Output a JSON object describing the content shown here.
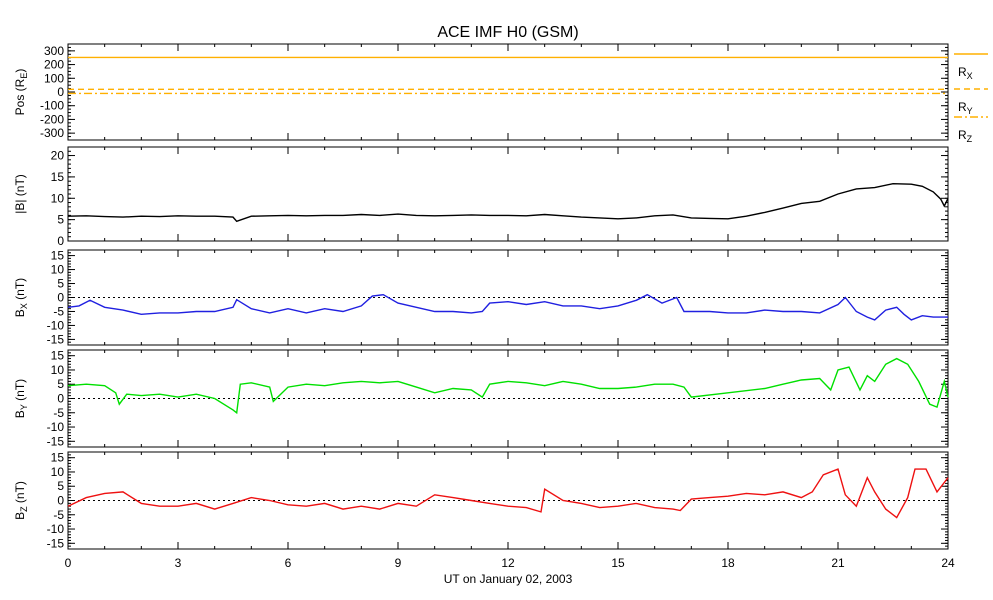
{
  "chart_data": {
    "title": "ACE IMF H0 (GSM)",
    "xlabel": "UT on January 02, 2003",
    "x_ticks": [
      "0",
      "3",
      "6",
      "9",
      "12",
      "15",
      "18",
      "21",
      "24"
    ],
    "xlim": [
      0,
      24
    ],
    "panels": [
      {
        "id": "pos",
        "type": "line",
        "ylabel_main": "Pos (R",
        "ylabel_sub": "E",
        "ylabel_end": ")",
        "ylim": [
          -350,
          350
        ],
        "y_ticks": [
          "300",
          "200",
          "100",
          "0",
          "-100",
          "-200",
          "-300"
        ],
        "zero_line": false,
        "legend": [
          {
            "main": "R",
            "sub": "X",
            "color": "#ffb000",
            "dash": "solid"
          },
          {
            "main": "R",
            "sub": "Y",
            "color": "#ffb000",
            "dash": "dashed"
          },
          {
            "main": "R",
            "sub": "Z",
            "color": "#ffb000",
            "dash": "dashdot"
          }
        ],
        "series": [
          {
            "name": "R_X",
            "color": "#ffb000",
            "dash": "solid",
            "x": [
              0,
              24
            ],
            "y": [
              252,
              252
            ]
          },
          {
            "name": "R_Y",
            "color": "#ffb000",
            "dash": "dashed",
            "x": [
              0,
              24
            ],
            "y": [
              20,
              20
            ]
          },
          {
            "name": "R_Z",
            "color": "#ffb000",
            "dash": "dashdot",
            "x": [
              0,
              24
            ],
            "y": [
              -10,
              -10
            ]
          }
        ]
      },
      {
        "id": "btot",
        "type": "line",
        "ylabel_main": "|B| (nT)",
        "ylabel_sub": "",
        "ylabel_end": "",
        "ylim": [
          0,
          22
        ],
        "y_ticks": [
          "20",
          "15",
          "10",
          "5",
          "0"
        ],
        "zero_line": false,
        "series": [
          {
            "name": "|B|",
            "color": "#000000",
            "x": [
              0,
              0.5,
              1,
              1.5,
              2,
              2.5,
              3,
              3.5,
              4,
              4.5,
              4.6,
              5,
              5.5,
              6,
              6.5,
              7,
              7.5,
              8,
              8.5,
              9,
              9.5,
              10,
              10.5,
              11,
              11.5,
              12,
              12.5,
              13,
              13.5,
              14,
              14.5,
              15,
              15.5,
              16,
              16.5,
              17,
              17.5,
              18,
              18.5,
              19,
              19.5,
              20,
              20.5,
              21,
              21.5,
              22,
              22.5,
              23,
              23.3,
              23.6,
              23.8,
              23.9,
              24
            ],
            "y": [
              5.8,
              5.9,
              5.7,
              5.6,
              5.8,
              5.7,
              5.9,
              5.8,
              5.8,
              5.6,
              4.6,
              5.8,
              5.9,
              6.0,
              5.9,
              6.0,
              6.0,
              6.2,
              6.0,
              6.3,
              6.0,
              5.9,
              6.0,
              6.1,
              6.0,
              6.0,
              5.9,
              6.2,
              5.9,
              5.6,
              5.4,
              5.2,
              5.4,
              5.9,
              6.1,
              5.4,
              5.3,
              5.2,
              5.8,
              6.7,
              7.7,
              8.8,
              9.3,
              11.0,
              12.2,
              12.5,
              13.4,
              13.3,
              12.8,
              11.5,
              9.8,
              8.2,
              10.0
            ]
          }
        ]
      },
      {
        "id": "bx",
        "type": "line",
        "ylabel_main": "B",
        "ylabel_sub": "X",
        "ylabel_end": " (nT)",
        "ylim": [
          -17,
          17
        ],
        "y_ticks": [
          "15",
          "10",
          "5",
          "0",
          "-5",
          "-10",
          "-15"
        ],
        "zero_line": true,
        "series": [
          {
            "name": "B_X",
            "color": "#2020e0",
            "x": [
              0,
              0.3,
              0.6,
              1,
              1.5,
              2,
              2.5,
              3,
              3.5,
              4,
              4.5,
              4.6,
              5,
              5.5,
              6,
              6.5,
              7,
              7.5,
              8,
              8.3,
              8.6,
              9,
              9.5,
              10,
              10.5,
              11,
              11.3,
              11.5,
              12,
              12.5,
              13,
              13.5,
              14,
              14.5,
              15,
              15.5,
              15.8,
              16.2,
              16.6,
              16.8,
              17.5,
              18,
              18.5,
              19,
              19.5,
              20,
              20.5,
              21,
              21.2,
              21.5,
              21.8,
              22,
              22.3,
              22.6,
              22.8,
              23,
              23.3,
              23.6,
              24
            ],
            "y": [
              -3.5,
              -3.0,
              -1.0,
              -3.5,
              -4.5,
              -6.0,
              -5.5,
              -5.5,
              -5.0,
              -5.0,
              -3.5,
              -0.8,
              -4.0,
              -5.5,
              -4.0,
              -5.5,
              -4.0,
              -5.0,
              -3.0,
              0.5,
              1.0,
              -2.0,
              -3.5,
              -5.0,
              -5.0,
              -5.5,
              -5.0,
              -2.0,
              -1.5,
              -2.5,
              -1.5,
              -3.0,
              -3.0,
              -4.0,
              -3.0,
              -1.0,
              1.0,
              -2.0,
              0.0,
              -5.0,
              -5.0,
              -5.5,
              -5.5,
              -4.5,
              -5.0,
              -5.0,
              -5.5,
              -2.5,
              0.0,
              -5.0,
              -7.0,
              -8.0,
              -4.5,
              -3.5,
              -6.0,
              -8.0,
              -6.5,
              -7.0,
              -7.0
            ]
          }
        ]
      },
      {
        "id": "by",
        "type": "line",
        "ylabel_main": "B",
        "ylabel_sub": "Y",
        "ylabel_end": " (nT)",
        "ylim": [
          -17,
          17
        ],
        "y_ticks": [
          "15",
          "10",
          "5",
          "0",
          "-5",
          "-10",
          "-15"
        ],
        "zero_line": true,
        "series": [
          {
            "name": "B_Y",
            "color": "#00e000",
            "x": [
              0,
              0.5,
              1,
              1.3,
              1.4,
              1.6,
              2,
              2.5,
              3,
              3.5,
              4,
              4.5,
              4.6,
              4.7,
              5,
              5.5,
              5.6,
              6,
              6.5,
              7,
              7.5,
              8,
              8.5,
              9,
              9.5,
              10,
              10.5,
              11,
              11.3,
              11.5,
              12,
              12.5,
              13,
              13.5,
              14,
              14.5,
              15,
              15.5,
              16,
              16.5,
              16.8,
              17,
              18,
              19,
              19.5,
              20,
              20.5,
              20.8,
              21,
              21.3,
              21.6,
              21.8,
              22,
              22.3,
              22.6,
              22.9,
              23.2,
              23.5,
              23.7,
              23.9,
              24
            ],
            "y": [
              4.5,
              5.0,
              4.5,
              2.0,
              -2.0,
              1.5,
              1.0,
              1.5,
              0.5,
              1.5,
              0.0,
              -4.0,
              -5.0,
              5.0,
              5.5,
              4.0,
              -1.0,
              4.0,
              5.0,
              4.5,
              5.5,
              6.0,
              5.5,
              6.0,
              4.0,
              2.0,
              3.5,
              3.0,
              0.5,
              5.0,
              6.0,
              5.5,
              4.5,
              6.0,
              5.0,
              3.5,
              3.5,
              4.0,
              5.0,
              5.0,
              4.0,
              0.5,
              2.0,
              3.5,
              5.0,
              6.5,
              7.0,
              3.0,
              10.0,
              11.0,
              3.0,
              8.0,
              6.0,
              12.0,
              14.0,
              12.0,
              6.0,
              -2.0,
              -3.0,
              6.0,
              0.5
            ]
          }
        ]
      },
      {
        "id": "bz",
        "type": "line",
        "ylabel_main": "B",
        "ylabel_sub": "Z",
        "ylabel_end": " (nT)",
        "ylim": [
          -17,
          17
        ],
        "y_ticks": [
          "15",
          "10",
          "5",
          "0",
          "-5",
          "-10",
          "-15"
        ],
        "zero_line": true,
        "series": [
          {
            "name": "B_Z",
            "color": "#ee1111",
            "x": [
              0,
              0.5,
              1,
              1.5,
              2,
              2.5,
              3,
              3.5,
              4,
              4.5,
              5,
              5.5,
              6,
              6.5,
              7,
              7.5,
              8,
              8.5,
              9,
              9.5,
              10,
              10.5,
              11,
              11.5,
              12,
              12.5,
              12.9,
              13,
              13.5,
              14,
              14.5,
              15,
              15.5,
              16,
              16.5,
              16.7,
              17,
              17.5,
              18,
              18.5,
              19,
              19.5,
              20,
              20.3,
              20.6,
              21,
              21.2,
              21.5,
              21.8,
              22,
              22.3,
              22.6,
              22.9,
              23.1,
              23.4,
              23.7,
              24
            ],
            "y": [
              -2.0,
              1.0,
              2.5,
              3.0,
              -1.0,
              -2.0,
              -2.0,
              -1.0,
              -3.0,
              -1.0,
              1.0,
              0.0,
              -1.5,
              -2.0,
              -1.0,
              -3.0,
              -2.0,
              -3.0,
              -1.0,
              -2.0,
              2.0,
              1.0,
              0.0,
              -1.0,
              -2.0,
              -2.5,
              -4.0,
              4.0,
              0.0,
              -1.0,
              -2.5,
              -2.0,
              -1.0,
              -2.5,
              -3.0,
              -3.5,
              0.5,
              1.0,
              1.5,
              2.5,
              2.0,
              3.0,
              1.0,
              3.0,
              9.0,
              11.0,
              2.0,
              -2.0,
              8.0,
              3.0,
              -3.0,
              -6.0,
              1.0,
              11.0,
              11.0,
              3.0,
              8.0
            ]
          }
        ]
      }
    ]
  }
}
